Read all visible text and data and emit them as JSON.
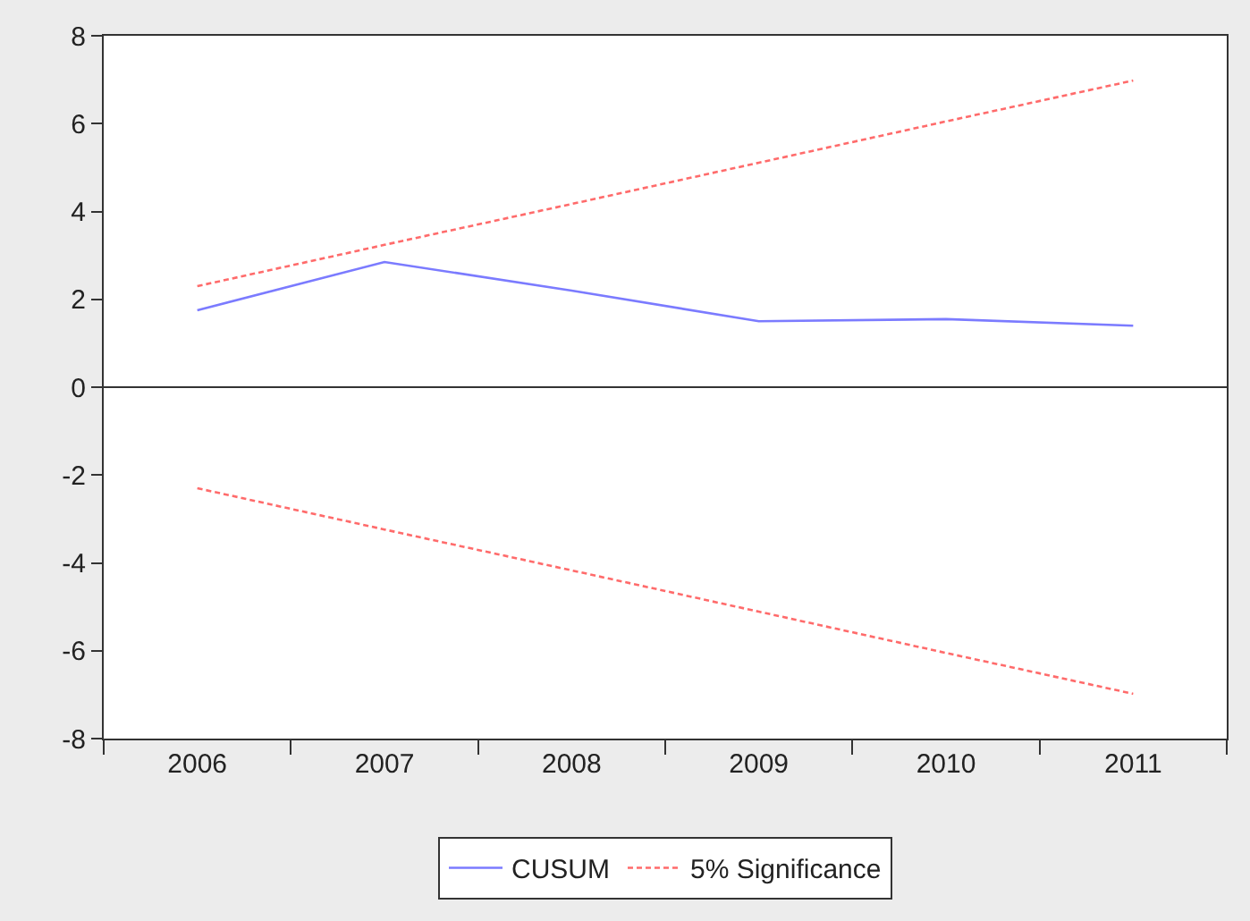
{
  "chart_data": {
    "type": "line",
    "categories": [
      "2006",
      "2007",
      "2008",
      "2009",
      "2010",
      "2011"
    ],
    "series": [
      {
        "name": "CUSUM",
        "color": "#7b7bff",
        "line_style": "solid",
        "values": [
          1.75,
          2.85,
          2.2,
          1.5,
          1.55,
          1.4
        ]
      },
      {
        "name": "5% Significance",
        "color": "#ff6b6b",
        "line_style": "dashed",
        "values": [
          2.3,
          3.24,
          4.17,
          5.11,
          6.05,
          6.98
        ]
      },
      {
        "color": "#ff6b6b",
        "line_style": "dashed",
        "values": [
          -2.3,
          -3.24,
          -4.17,
          -5.11,
          -6.05,
          -6.98
        ]
      }
    ],
    "ylim": [
      -8,
      8
    ],
    "yticks": [
      -8,
      -6,
      -4,
      -2,
      0,
      2,
      4,
      6,
      8
    ],
    "ref_lines": [
      {
        "axis": "y",
        "value": 0,
        "color": "#333333"
      }
    ],
    "legend": "bottom",
    "marker": "none"
  }
}
